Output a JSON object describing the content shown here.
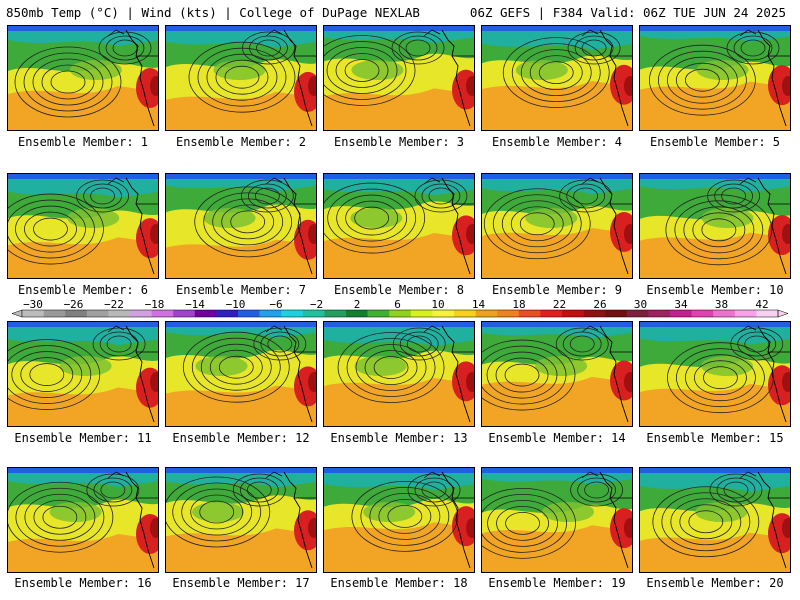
{
  "header": {
    "left": "850mb Temp (°C) | Wind (kts) | College of DuPage NEXLAB",
    "right": "06Z GEFS | F384 Valid: 06Z TUE JUN 24 2025"
  },
  "caption_prefix": "Ensemble Member: ",
  "members": [
    {
      "label": "Ensemble Member: 1"
    },
    {
      "label": "Ensemble Member: 2"
    },
    {
      "label": "Ensemble Member: 3"
    },
    {
      "label": "Ensemble Member: 4"
    },
    {
      "label": "Ensemble Member: 5"
    },
    {
      "label": "Ensemble Member: 6"
    },
    {
      "label": "Ensemble Member: 7"
    },
    {
      "label": "Ensemble Member: 8"
    },
    {
      "label": "Ensemble Member: 9"
    },
    {
      "label": "Ensemble Member: 10"
    },
    {
      "label": "Ensemble Member: 11"
    },
    {
      "label": "Ensemble Member: 12"
    },
    {
      "label": "Ensemble Member: 13"
    },
    {
      "label": "Ensemble Member: 14"
    },
    {
      "label": "Ensemble Member: 15"
    },
    {
      "label": "Ensemble Member: 16"
    },
    {
      "label": "Ensemble Member: 17"
    },
    {
      "label": "Ensemble Member: 18"
    },
    {
      "label": "Ensemble Member: 19"
    },
    {
      "label": "Ensemble Member: 20"
    }
  ],
  "colorbar": {
    "tick_labels": [
      "-30",
      "-26",
      "-22",
      "-18",
      "-14",
      "-10",
      "-6",
      "-2",
      "2",
      "6",
      "10",
      "14",
      "18",
      "22",
      "26",
      "30",
      "34",
      "38",
      "42"
    ],
    "colors": [
      "#bcbcbc",
      "#9a9a9a",
      "#808080",
      "#a0a0a0",
      "#b8b8b8",
      "#d0a0e0",
      "#d070e0",
      "#a040d0",
      "#7000a0",
      "#3020c0",
      "#2060e0",
      "#20a0f0",
      "#20d0e0",
      "#20c0a0",
      "#20a060",
      "#108030",
      "#40b030",
      "#90d020",
      "#d8f020",
      "#f8f040",
      "#f8d020",
      "#f0a020",
      "#f08020",
      "#e85020",
      "#e02020",
      "#c01010",
      "#901010",
      "#701010",
      "#802040",
      "#a02060",
      "#c02090",
      "#e040b0",
      "#f070d0",
      "#f8a0e8",
      "#f8d0f0"
    ]
  }
}
